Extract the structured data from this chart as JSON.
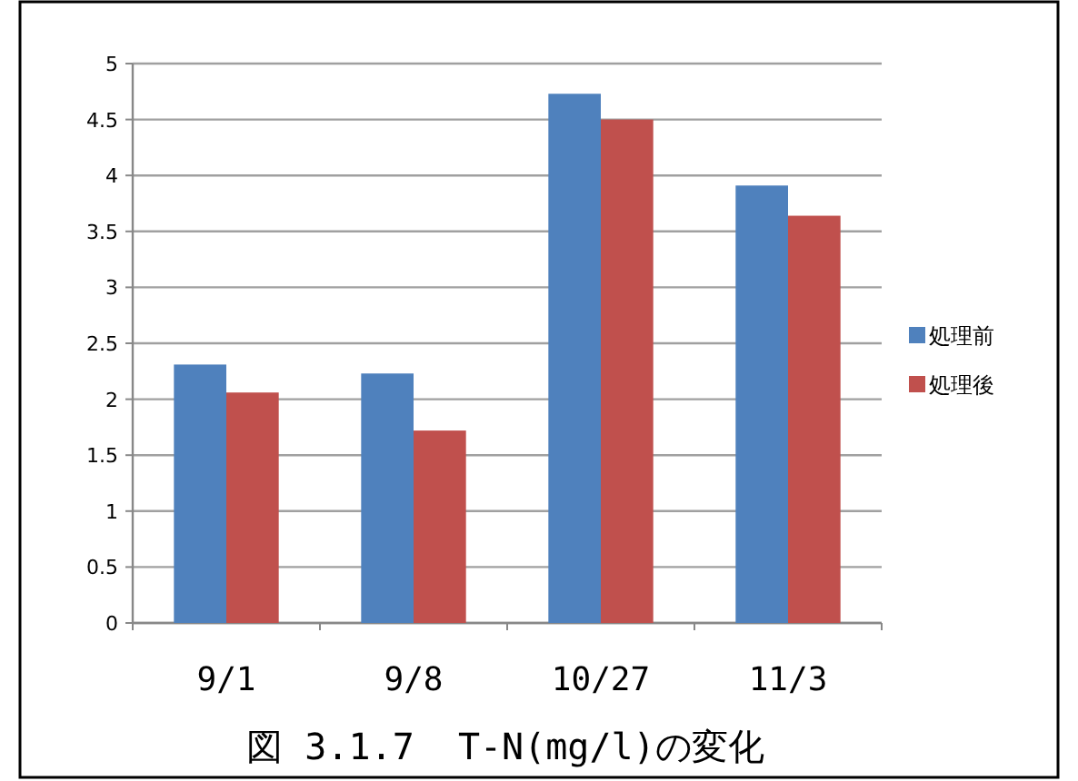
{
  "chart_data": {
    "type": "bar",
    "title": "図 3.1.7  T-N(mg/l)の変化",
    "categories": [
      "9/1",
      "9/8",
      "10/27",
      "11/3"
    ],
    "series": [
      {
        "name": "処理前",
        "color": "#4f81bd",
        "values": [
          2.31,
          2.23,
          4.73,
          3.91
        ]
      },
      {
        "name": "処理後",
        "color": "#c0504d",
        "values": [
          2.06,
          1.72,
          4.5,
          3.64
        ]
      }
    ],
    "ylim": [
      0,
      5
    ],
    "yticks": [
      0,
      0.5,
      1,
      1.5,
      2,
      2.5,
      3,
      3.5,
      4,
      4.5,
      5
    ],
    "grid": "y",
    "legend": "right"
  }
}
